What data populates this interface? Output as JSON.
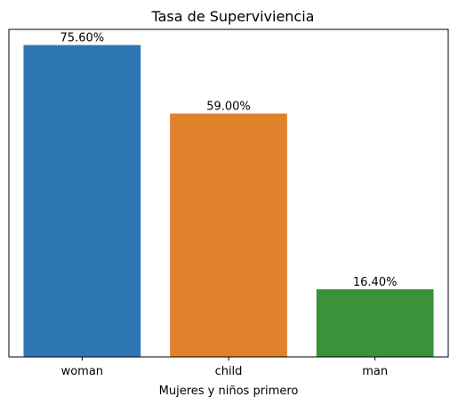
{
  "chart_data": {
    "type": "bar",
    "title": "Tasa de Superviviencia",
    "xlabel": "Mujeres y niños primero",
    "ylabel": "",
    "categories": [
      "woman",
      "child",
      "man"
    ],
    "values": [
      75.6,
      59.0,
      16.4
    ],
    "data_labels": [
      "75.60%",
      "59.00%",
      "16.40%"
    ],
    "colors": [
      "#2f77b4",
      "#e1812c",
      "#3a923a"
    ],
    "ylim": [
      0,
      79.4
    ],
    "y_ticks_visible": false,
    "grid": false,
    "legend": "none"
  }
}
